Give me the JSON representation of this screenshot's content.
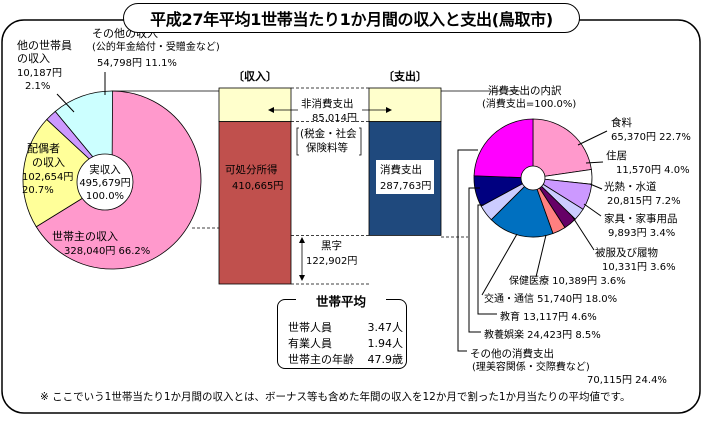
{
  "title": "平成27年平均1世帯当たり1か月間の収入と支出(鳥取市)",
  "chart_data": [
    {
      "type": "pie",
      "name": "income",
      "center_label": [
        "実収入",
        "495,679円",
        "100.0%"
      ],
      "slices": [
        {
          "label": [
            "世帯主の収入"
          ],
          "value_text": "328,040円",
          "pct_text": "66.2%",
          "pct": 66.2,
          "color": "#ff99cc"
        },
        {
          "label": [
            "配偶者",
            "の収入"
          ],
          "value_text": "102,654円",
          "pct_text": "20.7%",
          "pct": 20.7,
          "color": "#ffff99"
        },
        {
          "label": [
            "他の世帯員",
            "の収入"
          ],
          "value_text": "10,187円",
          "pct_text": "2.1%",
          "pct": 2.1,
          "color": "#cc99ff"
        },
        {
          "label": [
            "その他の収入",
            "(公的年金給付・受贈金など)"
          ],
          "value_text": "54,798円",
          "pct_text": "11.1%",
          "pct": 11.1,
          "color": "#ccffff"
        }
      ]
    },
    {
      "type": "bar",
      "name": "income-bar",
      "header": "〔収入〕",
      "segments": [
        {
          "label": "非消費支出",
          "value": 85014,
          "color": "#ffffcc"
        },
        {
          "label": "可処分所得",
          "value_text": "410,665円",
          "value": 410665,
          "color": "#c0504d"
        }
      ]
    },
    {
      "type": "bar",
      "name": "expense-bar",
      "header": "〔支出〕",
      "segments": [
        {
          "label": "非消費支出",
          "value": 85014,
          "color": "#ffffcc"
        },
        {
          "label": "消費支出",
          "value_text": "287,763円",
          "value": 287763,
          "color": "#1f497d"
        }
      ]
    },
    {
      "type": "pie",
      "name": "consumption",
      "title": [
        "消費支出の内訳",
        "(消費支出=100.0%)"
      ],
      "slices": [
        {
          "label": "食料",
          "value_text": "65,370円",
          "pct_text": "22.7%",
          "pct": 22.7,
          "color": "#ff99cc"
        },
        {
          "label": "住居",
          "value_text": "11,570円",
          "pct_text": "4.0%",
          "pct": 4.0,
          "color": "#ffffff"
        },
        {
          "label": "光熱・水道",
          "value_text": "20,815円",
          "pct_text": "7.2%",
          "pct": 7.2,
          "color": "#cc99ff"
        },
        {
          "label": "家具・家事用品",
          "value_text": "9,893円",
          "pct_text": "3.4%",
          "pct": 3.4,
          "color": "#ccccff"
        },
        {
          "label": "被服及び履物",
          "value_text": "10,331円",
          "pct_text": "3.6%",
          "pct": 3.6,
          "color": "#660066"
        },
        {
          "label": "保健医療",
          "value_text": "10,389円",
          "pct_text": "3.6%",
          "pct": 3.6,
          "color": "#ff8080"
        },
        {
          "label": "交通・通信",
          "value_text": "51,740円",
          "pct_text": "18.0%",
          "pct": 18.0,
          "color": "#0070c0"
        },
        {
          "label": "教育",
          "value_text": "13,117円",
          "pct_text": "4.6%",
          "pct": 4.6,
          "color": "#ccccff"
        },
        {
          "label": "教養娯楽",
          "value_text": "24,423円",
          "pct_text": "8.5%",
          "pct": 8.5,
          "color": "#000080"
        },
        {
          "label": [
            "その他の消費支出",
            "(理美容関係・交際費など)"
          ],
          "value_text": "70,115円",
          "pct_text": "24.4%",
          "pct": 24.4,
          "color": "#ff00ff"
        }
      ]
    }
  ],
  "annotations": {
    "non_consumption": [
      "非消費支出",
      "85,014円",
      "(税金・社会",
      "保険料等"
    ],
    "surplus": [
      "黒字",
      "122,902円"
    ]
  },
  "household_avg": {
    "title": "世帯平均",
    "rows": [
      {
        "label": "世帯人員",
        "value": "3.47人"
      },
      {
        "label": "有業人員",
        "value": "1.94人"
      },
      {
        "label": "世帯主の年齢",
        "value": "47.9歳"
      }
    ]
  },
  "footnote": "※ ここでいう1世帯当たり1か月間の収入とは、ボーナス等も含めた年間の収入を12か月で割った1か月当たりの平均値です。"
}
